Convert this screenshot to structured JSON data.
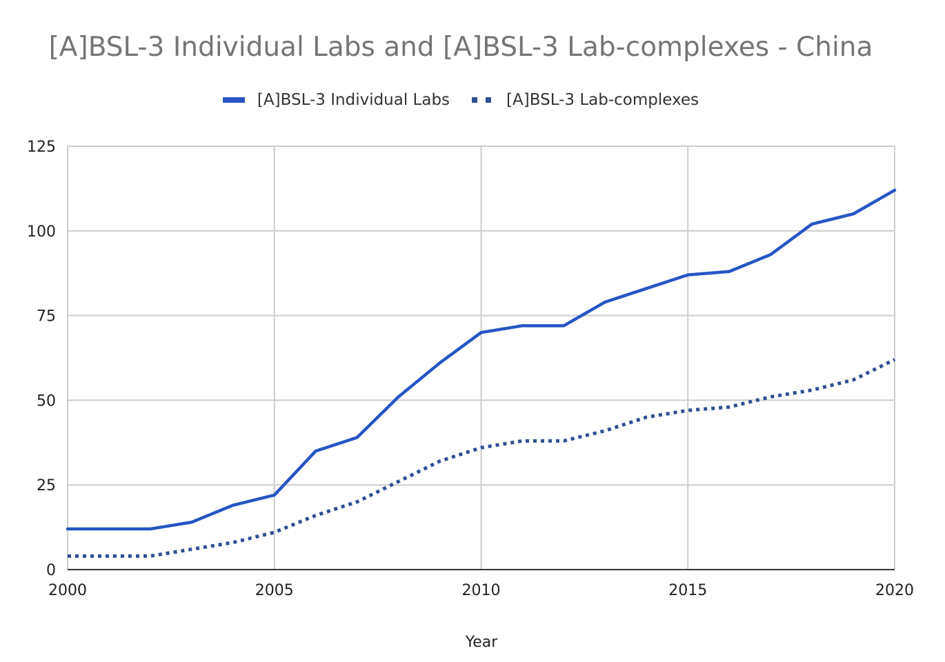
{
  "chart_data": {
    "type": "line",
    "title": "[A]BSL-3 Individual Labs and [A]BSL-3 Lab-complexes - China",
    "xlabel": "Year",
    "ylabel": "",
    "xlim": [
      2000,
      2020
    ],
    "ylim": [
      0,
      125
    ],
    "x_ticks": [
      "2000",
      "2005",
      "2010",
      "2015",
      "2020"
    ],
    "y_ticks": [
      "0",
      "25",
      "50",
      "75",
      "100",
      "125"
    ],
    "grid": true,
    "legend_position": "top",
    "x": [
      2000,
      2001,
      2002,
      2003,
      2004,
      2005,
      2006,
      2007,
      2008,
      2009,
      2010,
      2011,
      2012,
      2013,
      2014,
      2015,
      2016,
      2017,
      2018,
      2019,
      2020
    ],
    "series": [
      {
        "name": "[A]BSL-3 Individual Labs",
        "color": "#2755c4",
        "style": "solid",
        "values": [
          12,
          12,
          12,
          14,
          19,
          22,
          35,
          39,
          51,
          61,
          70,
          72,
          72,
          79,
          83,
          87,
          88,
          93,
          102,
          105,
          112
        ]
      },
      {
        "name": "[A]BSL-3 Lab-complexes",
        "color": "#2d4f94",
        "style": "dotted",
        "values": [
          4,
          4,
          4,
          6,
          8,
          11,
          16,
          20,
          26,
          32,
          36,
          38,
          38,
          41,
          45,
          47,
          48,
          51,
          53,
          56,
          62
        ]
      }
    ]
  }
}
